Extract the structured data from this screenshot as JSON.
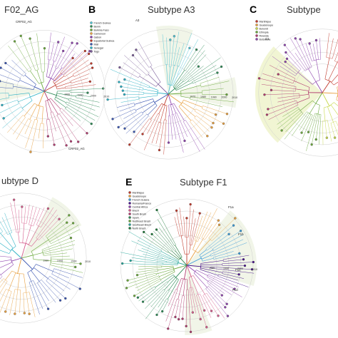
{
  "panels": [
    {
      "id": "A",
      "letter": "",
      "title": "F02_AG",
      "ticks": [
        "1980",
        "1990",
        "2000",
        "2010"
      ],
      "clade_labels": [
        "CRF02_AG",
        "CRF02_AG"
      ],
      "legend": [],
      "colors": [
        "#c0392b",
        "#2e8b57",
        "#b03a6e",
        "#e8a040",
        "#2ab0c4",
        "#3a55b0",
        "#6aa83c",
        "#8e44ad"
      ]
    },
    {
      "id": "B",
      "letter": "B",
      "title": "Subtype A3",
      "ticks": [
        "1970",
        "1980",
        "1990",
        "2000",
        "2010"
      ],
      "clade_labels": [
        "A3"
      ],
      "legend": [
        {
          "label": "French Guinea",
          "color": "#4fc3d4"
        },
        {
          "label": "Benin",
          "color": "#2e8b57"
        },
        {
          "label": "Burkina Faso",
          "color": "#6aa83c"
        },
        {
          "label": "Cameroon",
          "color": "#e8a040"
        },
        {
          "label": "Gabon",
          "color": "#8e44ad"
        },
        {
          "label": "Equatorial Guinea",
          "color": "#c0392b"
        },
        {
          "label": "Mali",
          "color": "#3a55b0"
        },
        {
          "label": "Senegal",
          "color": "#2ab0c4"
        },
        {
          "label": "Togo",
          "color": "#7a5c99"
        }
      ]
    },
    {
      "id": "C",
      "letter": "C",
      "title": "Subtype",
      "ticks": [],
      "clade_labels": [
        "C1"
      ],
      "legend": [
        {
          "label": "Martinique",
          "color": "#c0392b"
        },
        {
          "label": "Guadeloupe",
          "color": "#e8a040"
        },
        {
          "label": "Burundi",
          "color": "#c8d84c"
        },
        {
          "label": "Ethiopia",
          "color": "#6aa83c"
        },
        {
          "label": "Rwanda",
          "color": "#b03a6e"
        },
        {
          "label": "Botswana",
          "color": "#8e44ad"
        }
      ]
    },
    {
      "id": "D",
      "letter": "",
      "title": "ubtype D",
      "ticks": [
        "1980",
        "1990",
        "2000",
        "2010"
      ],
      "clade_labels": [],
      "legend": [],
      "colors": [
        "#d45a8a",
        "#6aa83c",
        "#3a55b0",
        "#e8a040",
        "#8e44ad",
        "#2ab0c4"
      ]
    },
    {
      "id": "E",
      "letter": "E",
      "title": "Subtype F1",
      "ticks": [
        "1980",
        "1990",
        "2000",
        "2010"
      ],
      "clade_labels": [
        "F1a",
        "F1b",
        "F1c",
        "F1d"
      ],
      "legend": [
        {
          "label": "Martinique",
          "color": "#c0392b"
        },
        {
          "label": "Guadeloupe",
          "color": "#e8a040"
        },
        {
          "label": "French Guiana",
          "color": "#3a9ad9"
        },
        {
          "label": "Romania/France",
          "color": "#4a148c"
        },
        {
          "label": "Central Africa",
          "color": "#8e44ad"
        },
        {
          "label": "Brazil",
          "color": "#d45a8a"
        },
        {
          "label": "South Brazil",
          "color": "#b03a6e"
        },
        {
          "label": "Spain",
          "color": "#2e8b57"
        },
        {
          "label": "Northeast Brazil",
          "color": "#6aa83c"
        },
        {
          "label": "Southeast Brazil",
          "color": "#26a69a"
        },
        {
          "label": "North Brazil",
          "color": "#1e7a3a"
        }
      ]
    }
  ]
}
